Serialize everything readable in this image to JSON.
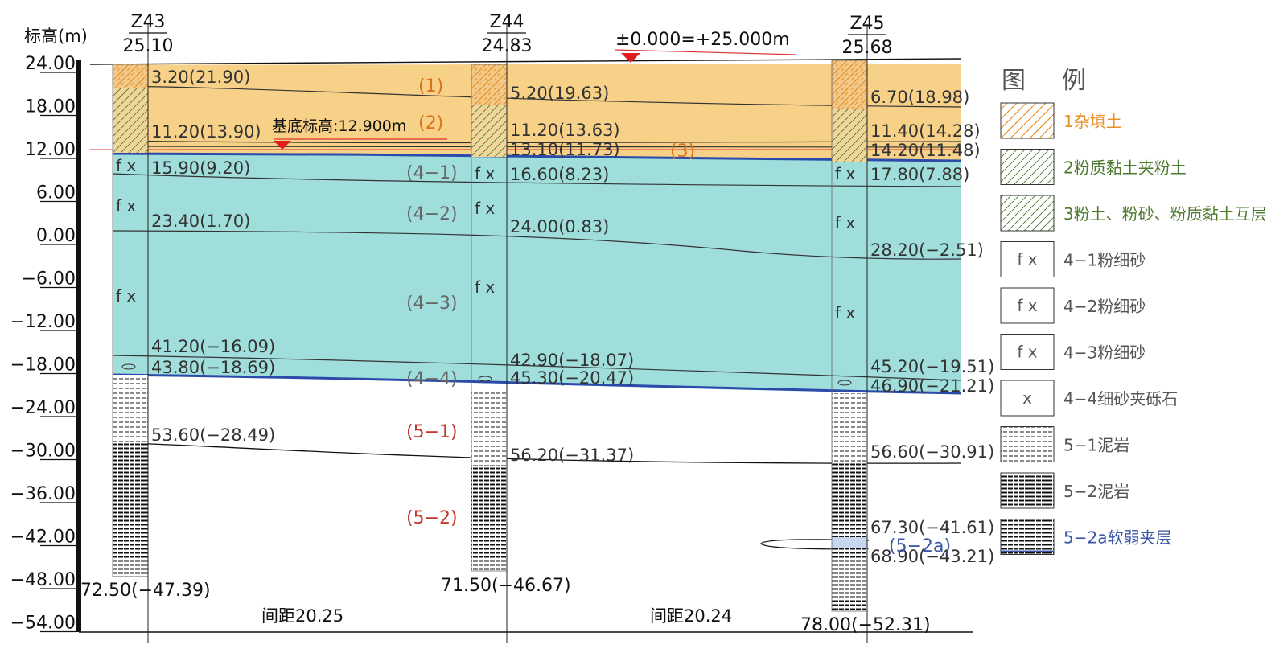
{
  "axis": {
    "label": "标高(m)",
    "ticks": [
      "24.00",
      "18.00",
      "12.00",
      "6.00",
      "0.00",
      "−6.00",
      "−12.00",
      "−18.00",
      "−24.00",
      "−30.00",
      "−36.00",
      "−42.00",
      "−48.00",
      "−54.00"
    ]
  },
  "datum_note": "±0.000=+25.000m",
  "base_elevation_note": "基底标高:12.900m",
  "boreholes": [
    {
      "id": "Z43",
      "elevation": "25.10",
      "labels": [
        "3.20(21.90)",
        "11.20(13.90)",
        "15.90(9.20)",
        "23.40(1.70)",
        "41.20(−16.09)",
        "43.80(−18.69)",
        "53.60(−28.49)"
      ],
      "bottom": "72.50(−47.39)",
      "symbols": [
        "f x",
        "f x",
        "f x"
      ]
    },
    {
      "id": "Z44",
      "elevation": "24.83",
      "labels": [
        "5.20(19.63)",
        "11.20(13.63)",
        "13.10(11.73)",
        "16.60(8.23)",
        "24.00(0.83)",
        "42.90(−18.07)",
        "45.30(−20.47)",
        "56.20(−31.37)"
      ],
      "bottom": "71.50(−46.67)",
      "symbols": [
        "f x",
        "f x",
        "f x"
      ]
    },
    {
      "id": "Z45",
      "elevation": "25.68",
      "labels": [
        "6.70(18.98)",
        "11.40(14.28)",
        "14.20(11.48)",
        "17.80(7.88)",
        "28.20(−2.51)",
        "45.20(−19.51)",
        "46.90(−21.21)",
        "56.60(−30.91)",
        "67.30(−41.61)",
        "68.90(−43.21)"
      ],
      "bottom": "78.00(−52.31)",
      "symbols": [
        "f x",
        "f x",
        "f x"
      ]
    }
  ],
  "layers": [
    {
      "id": "(1)"
    },
    {
      "id": "(2)"
    },
    {
      "id": "(3)"
    },
    {
      "id": "(4−1)"
    },
    {
      "id": "(4−2)"
    },
    {
      "id": "(4−3)"
    },
    {
      "id": "(4−4)"
    },
    {
      "id": "(5−1)"
    },
    {
      "id": "(5−2)"
    },
    {
      "id": "(5−2a)"
    }
  ],
  "spacings": [
    "间距20.25",
    "间距20.24"
  ],
  "legend": {
    "title_1": "图",
    "title_2": "例",
    "items": [
      {
        "label": "1杂填土",
        "color": "#e8912a"
      },
      {
        "label": "2粉质黏土夹粉土",
        "color": "#4c7a2c"
      },
      {
        "label": "3粉土、粉砂、粉质黏土互层",
        "color": "#4c7a2c"
      },
      {
        "label": "4−1粉细砂",
        "color": "#555555",
        "symbol": "f x"
      },
      {
        "label": "4−2粉细砂",
        "color": "#555555",
        "symbol": "f x"
      },
      {
        "label": "4−3粉细砂",
        "color": "#555555",
        "symbol": "f x"
      },
      {
        "label": "4−4细砂夹砾石",
        "color": "#555555",
        "symbol": "x"
      },
      {
        "label": "5−1泥岩",
        "color": "#555555"
      },
      {
        "label": "5−2泥岩",
        "color": "#555555"
      },
      {
        "label": "5−2a软弱夹层",
        "color": "#3a56a8"
      }
    ]
  }
}
